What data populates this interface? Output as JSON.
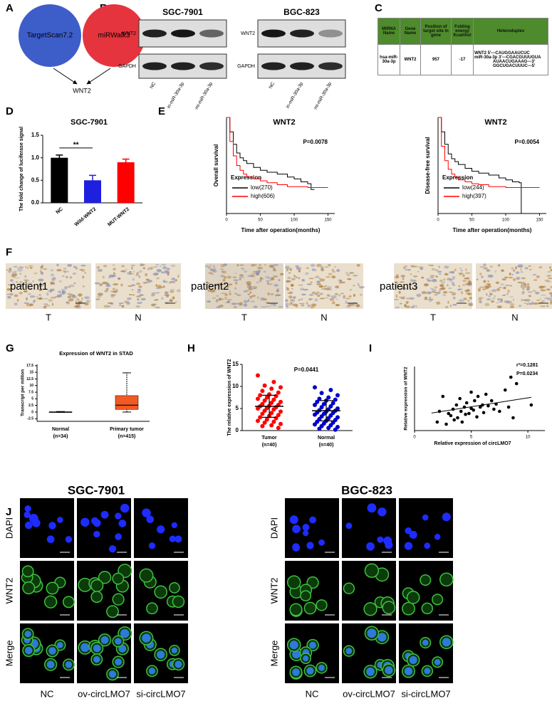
{
  "panel_labels": [
    "A",
    "B",
    "C",
    "D",
    "E",
    "F",
    "G",
    "H",
    "I",
    "J"
  ],
  "venn": {
    "circles": [
      "TargetScan7.2",
      "miRWalk3"
    ],
    "target": "WNT2",
    "colors": [
      "#3d5dc9",
      "#e5343d"
    ]
  },
  "blot": {
    "cell_lines": [
      "SGC-7901",
      "BGC-823"
    ],
    "proteins": [
      "WNT2",
      "GAPDH"
    ],
    "lanes": [
      "NC",
      "in-miR-30a-3p",
      "mi-miR-30a-3p"
    ]
  },
  "table": {
    "header": [
      "MiRNA Name",
      "Gene Name",
      "Position of target site in gene",
      "Folding energy Kcal/mol",
      "Heteroduplex"
    ],
    "rows": [
      [
        "hsa-miR-30a-3p",
        "WNT2",
        "957",
        "-17"
      ]
    ],
    "heteroduplex": [
      "WNT2 5'---CAUGGAAUCUC",
      "miR-30a-3p 3'---CGACGUUUGUA",
      "AUAACUGAAAG---3'",
      "GGCUGACUUUC---5'"
    ]
  },
  "chart_data": [
    {
      "type": "bar",
      "title": "SGC-7901",
      "y_label": "The fold change of luciferase signal",
      "categories": [
        "NC",
        "Wild-WNT2",
        "MUT-WNT2"
      ],
      "values": [
        1.0,
        0.5,
        0.9
      ],
      "errors": [
        0.06,
        0.11,
        0.07
      ],
      "colors": [
        "#000000",
        "#1f1fe0",
        "#ff0000"
      ],
      "ylim": [
        0,
        1.5
      ],
      "yticks": [
        {
          "value": 0,
          "label": "0.0"
        },
        {
          "value": 0.5,
          "label": "0.5"
        },
        {
          "value": 1,
          "label": "1.0"
        },
        {
          "value": 1.5,
          "label": "1.5"
        }
      ],
      "annotation": "**"
    },
    {
      "type": "line",
      "title": "WNT2",
      "annotation": "P=0.0078",
      "y_label": "Overall survival",
      "x_label": "Time after operation(months)",
      "legend_title": "Expression",
      "xlim": [
        0,
        160
      ],
      "ylim": [
        0,
        1
      ],
      "xticks": [
        0,
        50,
        100,
        150
      ],
      "series": [
        {
          "name": "low(270)",
          "color": "#000000",
          "x": [
            0,
            5,
            10,
            15,
            20,
            25,
            30,
            40,
            50,
            60,
            75,
            90,
            100,
            110,
            120,
            125,
            130
          ],
          "values": [
            1,
            0.85,
            0.72,
            0.63,
            0.58,
            0.55,
            0.52,
            0.48,
            0.45,
            0.43,
            0.41,
            0.38,
            0.36,
            0.33,
            0.31,
            0.25,
            0.25
          ]
        },
        {
          "name": "high(606)",
          "color": "#ff0000",
          "x": [
            0,
            5,
            10,
            15,
            20,
            25,
            30,
            40,
            50,
            60,
            75,
            90,
            100,
            120,
            150
          ],
          "values": [
            1,
            0.75,
            0.6,
            0.5,
            0.45,
            0.41,
            0.38,
            0.36,
            0.34,
            0.32,
            0.3,
            0.28,
            0.28,
            0.27,
            0.27
          ]
        }
      ]
    },
    {
      "type": "line",
      "title": "WNT2",
      "annotation": "P=0.0054",
      "y_label": "Disease-free survival",
      "x_label": "Time after operation(months)",
      "legend_title": "Expression",
      "xlim": [
        0,
        160
      ],
      "ylim": [
        0,
        1
      ],
      "xticks": [
        0,
        50,
        100,
        150
      ],
      "series": [
        {
          "name": "low(244)",
          "color": "#000000",
          "x": [
            0,
            5,
            10,
            15,
            20,
            25,
            30,
            40,
            50,
            60,
            75,
            90,
            100,
            110,
            120,
            122,
            123
          ],
          "values": [
            1,
            0.85,
            0.72,
            0.62,
            0.57,
            0.54,
            0.51,
            0.47,
            0.44,
            0.42,
            0.4,
            0.37,
            0.35,
            0.33,
            0.32,
            0.32,
            0
          ]
        },
        {
          "name": "high(397)",
          "color": "#ff0000",
          "x": [
            0,
            5,
            10,
            15,
            20,
            25,
            30,
            40,
            50,
            60,
            75,
            100,
            125,
            150
          ],
          "values": [
            1,
            0.7,
            0.55,
            0.46,
            0.41,
            0.38,
            0.35,
            0.33,
            0.31,
            0.3,
            0.28,
            0.27,
            0.27,
            0.27
          ]
        }
      ]
    },
    {
      "type": "box",
      "title": "Expression of WNT2 in STAD",
      "y_label": "Transcript per million",
      "categories": [
        "Normal",
        "Primary tumor"
      ],
      "n_labels": [
        "(n=34)",
        "(n=415)"
      ],
      "boxes": [
        {
          "min": -0.1,
          "q1": -0.05,
          "median": 0,
          "q3": 0.1,
          "max": 0.2
        },
        {
          "min": 0,
          "q1": 1,
          "median": 2.6,
          "q3": 6.2,
          "max": 14.8
        }
      ],
      "colors": [
        "#aaaaaa",
        "#f15a24"
      ],
      "ylim": [
        -3.5,
        18
      ],
      "yticks": [
        -2.5,
        0,
        2.5,
        5,
        7.5,
        10,
        12.5,
        15,
        17.5
      ]
    },
    {
      "type": "dot",
      "annotation": "P=0.0441",
      "y_label": "The relative expression of WNT2",
      "categories": [
        "Tumor",
        "Normal"
      ],
      "n_labels": [
        "(n=40)",
        "(n=40)"
      ],
      "values": [
        [
          12.5,
          11,
          10.2,
          9.8,
          9.5,
          9,
          8.6,
          8.2,
          8,
          7.8,
          7.5,
          7.2,
          7,
          6.8,
          6.5,
          6.3,
          6,
          5.8,
          5.6,
          5.5,
          5.3,
          5.1,
          5,
          4.8,
          4.5,
          4.3,
          4,
          3.8,
          3.5,
          3.3,
          3,
          2.8,
          2.5,
          2.2,
          2,
          1.8,
          1.5,
          1.2,
          1,
          0.6
        ],
        [
          9.8,
          9.2,
          8.5,
          8,
          7.5,
          7.2,
          7,
          6.8,
          6.5,
          6.2,
          6,
          5.8,
          5.5,
          5.3,
          5,
          4.8,
          4.6,
          4.5,
          4.3,
          4.1,
          4,
          3.8,
          3.6,
          3.4,
          3.2,
          3,
          2.8,
          2.6,
          2.4,
          2.2,
          2,
          1.8,
          1.6,
          1.4,
          1.2,
          1,
          0.8,
          0.6,
          0.4,
          0.2
        ]
      ],
      "mean": [
        5.5,
        4.5
      ],
      "sd": [
        2.5,
        2.3
      ],
      "colors": [
        "#ff0000",
        "#0000cc"
      ],
      "ylim": [
        0,
        15
      ],
      "yticks": [
        0,
        5,
        10,
        15
      ]
    },
    {
      "type": "scatter",
      "annotations": [
        "r²=0.1281",
        "P=0.0234"
      ],
      "x_label": "Relative expression of circLMO7",
      "y_label": "Relative expression of WNT2",
      "x": [
        2,
        2.2,
        2.5,
        2.8,
        3,
        3.2,
        3.4,
        3.5,
        3.7,
        3.8,
        4,
        4.1,
        4.2,
        4.4,
        4.5,
        4.6,
        4.8,
        5,
        5,
        5.2,
        5.3,
        5.5,
        5.6,
        5.8,
        6,
        6.1,
        6.3,
        6.5,
        6.8,
        7,
        7.2,
        7.5,
        8,
        8.3,
        8.5,
        8.7,
        9,
        10.3
      ],
      "values": [
        2,
        4.5,
        8,
        1.5,
        4,
        3.5,
        5,
        2.5,
        6,
        3,
        7.5,
        4.5,
        2,
        5.5,
        3.8,
        6.5,
        4,
        5.2,
        9,
        4.8,
        7,
        3.2,
        8,
        5.5,
        6,
        4.2,
        8.5,
        5.8,
        7,
        5,
        6.2,
        4.5,
        9.5,
        5.5,
        12.5,
        3,
        11,
        6
      ],
      "color": "#000000",
      "trend": {
        "x": [
          1.5,
          10.3
        ],
        "values": [
          4.1,
          7.8
        ]
      },
      "xlim": [
        0,
        11.5
      ],
      "ylim": [
        0,
        15
      ],
      "xticks": [
        0,
        5,
        10
      ]
    }
  ],
  "histology": {
    "patients": [
      "patient1",
      "patient2",
      "patient3"
    ],
    "columns": [
      "T",
      "N"
    ]
  },
  "fluorescence": {
    "cell_lines": [
      "SGC-7901",
      "BGC-823"
    ],
    "rows": [
      "DAPI",
      "WNT2",
      "Merge"
    ],
    "columns": [
      "NC",
      "ov-circLMO7",
      "si-circLMO7"
    ]
  }
}
